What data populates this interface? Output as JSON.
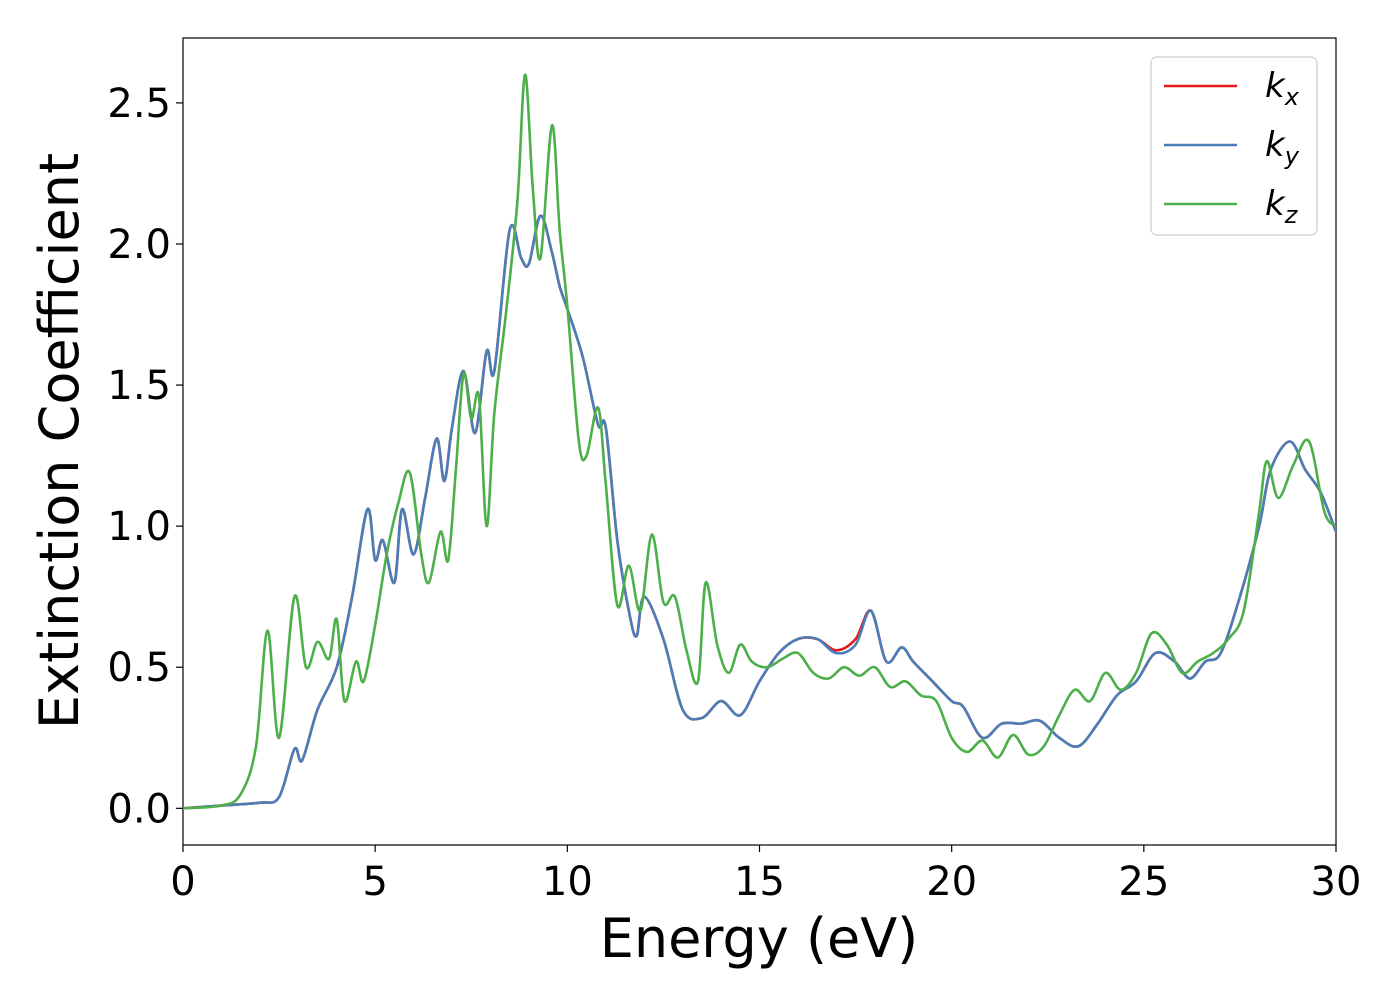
{
  "chart_data": {
    "type": "line",
    "title": "",
    "xlabel": "Energy (eV)",
    "ylabel": "Extinction Coefficient",
    "xlim": [
      0,
      30
    ],
    "ylim": [
      -0.13,
      2.73
    ],
    "xticks": [
      0,
      5,
      10,
      15,
      20,
      25,
      30
    ],
    "xtick_labels": [
      "0",
      "5",
      "10",
      "15",
      "20",
      "25",
      "30"
    ],
    "yticks": [
      0.0,
      0.5,
      1.0,
      1.5,
      2.0,
      2.5
    ],
    "ytick_labels": [
      "0.0",
      "0.5",
      "1.0",
      "1.5",
      "2.0",
      "2.5"
    ],
    "grid": false,
    "legend_position": "top-right",
    "series": [
      {
        "name": "k_x",
        "label_base": "k",
        "label_sub": "x",
        "color": "#e41a1c",
        "x": [
          0,
          1.0,
          2.0,
          2.5,
          2.9,
          3.1,
          3.5,
          4.0,
          4.4,
          4.8,
          5.0,
          5.2,
          5.5,
          5.7,
          6.0,
          6.3,
          6.6,
          6.8,
          7.0,
          7.3,
          7.6,
          7.9,
          8.1,
          8.5,
          8.8,
          9.0,
          9.3,
          9.6,
          9.8,
          10.0,
          10.4,
          10.8,
          11.0,
          11.3,
          11.6,
          11.8,
          12.0,
          12.5,
          13.0,
          13.5,
          14.0,
          14.5,
          15.0,
          15.5,
          16.0,
          16.5,
          17.0,
          17.5,
          17.9,
          18.3,
          18.7,
          19.0,
          19.5,
          20.0,
          20.3,
          20.8,
          21.3,
          21.8,
          22.3,
          22.8,
          23.3,
          23.8,
          24.3,
          24.8,
          25.3,
          25.8,
          26.2,
          26.6,
          27.0,
          27.5,
          28.0,
          28.3,
          28.8,
          29.2,
          29.6,
          30.0
        ],
        "y": [
          0.0,
          0.01,
          0.02,
          0.04,
          0.21,
          0.17,
          0.35,
          0.5,
          0.75,
          1.06,
          0.88,
          0.95,
          0.8,
          1.06,
          0.9,
          1.1,
          1.31,
          1.16,
          1.35,
          1.55,
          1.33,
          1.62,
          1.55,
          2.05,
          1.95,
          1.93,
          2.1,
          1.97,
          1.85,
          1.77,
          1.6,
          1.36,
          1.35,
          0.95,
          0.7,
          0.61,
          0.75,
          0.6,
          0.35,
          0.32,
          0.38,
          0.33,
          0.45,
          0.55,
          0.6,
          0.6,
          0.56,
          0.6,
          0.7,
          0.52,
          0.57,
          0.52,
          0.45,
          0.38,
          0.36,
          0.25,
          0.3,
          0.3,
          0.31,
          0.25,
          0.22,
          0.3,
          0.4,
          0.45,
          0.55,
          0.52,
          0.46,
          0.52,
          0.55,
          0.75,
          1.0,
          1.2,
          1.3,
          1.2,
          1.12,
          0.98
        ]
      },
      {
        "name": "k_y",
        "label_base": "k",
        "label_sub": "y",
        "color": "#4a7eb8",
        "x": [
          0,
          1.0,
          2.0,
          2.5,
          2.9,
          3.1,
          3.5,
          4.0,
          4.4,
          4.8,
          5.0,
          5.2,
          5.5,
          5.7,
          6.0,
          6.3,
          6.6,
          6.8,
          7.0,
          7.3,
          7.6,
          7.9,
          8.1,
          8.5,
          8.8,
          9.0,
          9.3,
          9.6,
          9.8,
          10.0,
          10.4,
          10.8,
          11.0,
          11.3,
          11.6,
          11.8,
          12.0,
          12.5,
          13.0,
          13.5,
          14.0,
          14.5,
          15.0,
          15.5,
          16.0,
          16.5,
          17.0,
          17.5,
          17.9,
          18.3,
          18.7,
          19.0,
          19.5,
          20.0,
          20.3,
          20.8,
          21.3,
          21.8,
          22.3,
          22.8,
          23.3,
          23.8,
          24.3,
          24.8,
          25.3,
          25.8,
          26.2,
          26.6,
          27.0,
          27.5,
          28.0,
          28.3,
          28.8,
          29.2,
          29.6,
          30.0
        ],
        "y": [
          0.0,
          0.01,
          0.02,
          0.04,
          0.21,
          0.17,
          0.35,
          0.5,
          0.75,
          1.06,
          0.88,
          0.95,
          0.8,
          1.06,
          0.9,
          1.1,
          1.31,
          1.16,
          1.35,
          1.55,
          1.33,
          1.62,
          1.55,
          2.05,
          1.95,
          1.93,
          2.1,
          1.97,
          1.85,
          1.77,
          1.6,
          1.36,
          1.35,
          0.95,
          0.7,
          0.61,
          0.75,
          0.6,
          0.35,
          0.32,
          0.38,
          0.33,
          0.45,
          0.55,
          0.6,
          0.6,
          0.55,
          0.58,
          0.7,
          0.52,
          0.57,
          0.52,
          0.45,
          0.38,
          0.36,
          0.25,
          0.3,
          0.3,
          0.31,
          0.25,
          0.22,
          0.3,
          0.4,
          0.45,
          0.55,
          0.52,
          0.46,
          0.52,
          0.55,
          0.75,
          1.0,
          1.2,
          1.3,
          1.2,
          1.12,
          0.98
        ]
      },
      {
        "name": "k_z",
        "label_base": "k",
        "label_sub": "z",
        "color": "#4daf4a",
        "x": [
          0,
          1.0,
          1.5,
          1.9,
          2.2,
          2.5,
          2.9,
          3.2,
          3.5,
          3.8,
          4.0,
          4.2,
          4.5,
          4.7,
          5.0,
          5.3,
          5.6,
          5.9,
          6.2,
          6.4,
          6.7,
          6.9,
          7.1,
          7.3,
          7.5,
          7.7,
          7.9,
          8.1,
          8.4,
          8.7,
          8.9,
          9.1,
          9.3,
          9.6,
          9.8,
          10.0,
          10.3,
          10.5,
          10.8,
          11.0,
          11.3,
          11.6,
          11.9,
          12.2,
          12.5,
          12.8,
          13.1,
          13.4,
          13.6,
          13.9,
          14.2,
          14.5,
          14.8,
          15.2,
          15.6,
          16.0,
          16.4,
          16.8,
          17.2,
          17.6,
          18.0,
          18.4,
          18.8,
          19.2,
          19.6,
          20.0,
          20.4,
          20.8,
          21.2,
          21.6,
          22.0,
          22.4,
          22.8,
          23.2,
          23.6,
          24.0,
          24.4,
          24.8,
          25.2,
          25.6,
          26.0,
          26.4,
          26.8,
          27.2,
          27.6,
          28.0,
          28.2,
          28.5,
          28.9,
          29.3,
          29.7,
          30.0
        ],
        "y": [
          0.0,
          0.01,
          0.05,
          0.22,
          0.63,
          0.25,
          0.75,
          0.5,
          0.59,
          0.53,
          0.67,
          0.38,
          0.52,
          0.45,
          0.65,
          0.9,
          1.08,
          1.19,
          0.9,
          0.8,
          0.98,
          0.88,
          1.2,
          1.54,
          1.38,
          1.46,
          1.0,
          1.4,
          1.75,
          2.15,
          2.6,
          2.2,
          1.95,
          2.42,
          2.05,
          1.78,
          1.3,
          1.25,
          1.42,
          1.15,
          0.72,
          0.86,
          0.7,
          0.97,
          0.73,
          0.75,
          0.56,
          0.45,
          0.8,
          0.58,
          0.48,
          0.58,
          0.52,
          0.5,
          0.53,
          0.55,
          0.48,
          0.46,
          0.5,
          0.47,
          0.5,
          0.43,
          0.45,
          0.4,
          0.38,
          0.25,
          0.2,
          0.24,
          0.18,
          0.26,
          0.19,
          0.22,
          0.33,
          0.42,
          0.38,
          0.48,
          0.42,
          0.48,
          0.62,
          0.58,
          0.48,
          0.52,
          0.55,
          0.6,
          0.7,
          1.05,
          1.23,
          1.1,
          1.22,
          1.3,
          1.05,
          1.0
        ]
      }
    ]
  }
}
